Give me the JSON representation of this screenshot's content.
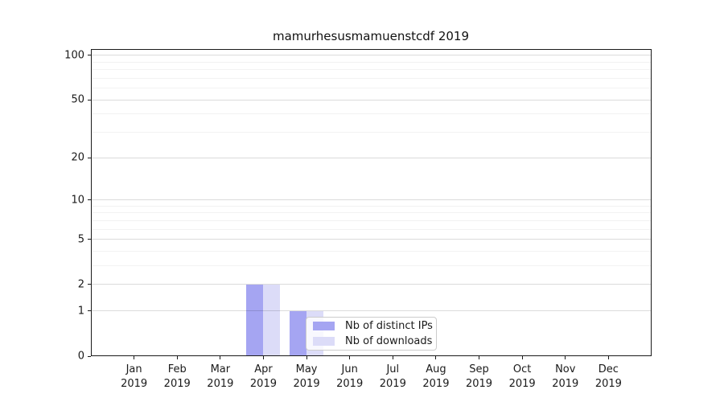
{
  "chart_data": {
    "type": "bar",
    "title": "mamurhesusmamuenstcdf 2019",
    "categories": [
      "Jan\n2019",
      "Feb\n2019",
      "Mar\n2019",
      "Apr\n2019",
      "May\n2019",
      "Jun\n2019",
      "Jul\n2019",
      "Aug\n2019",
      "Sep\n2019",
      "Oct\n2019",
      "Nov\n2019",
      "Dec\n2019"
    ],
    "series": [
      {
        "name": "Nb of distinct IPs",
        "color": "#a5a5f2",
        "values": [
          0,
          0,
          0,
          2,
          1,
          0,
          0,
          0,
          0,
          0,
          0,
          0
        ]
      },
      {
        "name": "Nb of downloads",
        "color": "#dcdcf8",
        "values": [
          0,
          0,
          0,
          2,
          1,
          0,
          0,
          0,
          0,
          0,
          0,
          0
        ]
      }
    ],
    "xlabel": "",
    "ylabel": "",
    "yscale": "log1p",
    "ylim": [
      0,
      110
    ],
    "yticks": [
      0,
      1,
      2,
      5,
      10,
      20,
      50,
      100
    ],
    "yticks_minor": [
      3,
      4,
      6,
      7,
      8,
      9,
      30,
      40,
      60,
      70,
      80,
      90
    ],
    "grid": true,
    "legend_position": "inside lower center-left"
  },
  "colors": {
    "axis": "#1a1a1a",
    "grid_major": "rgba(0,0,0,0.14)",
    "grid_minor": "rgba(0,0,0,0.05)",
    "legend_border": "#cccccc",
    "legend_background": "rgba(255,255,255,0.8)"
  }
}
